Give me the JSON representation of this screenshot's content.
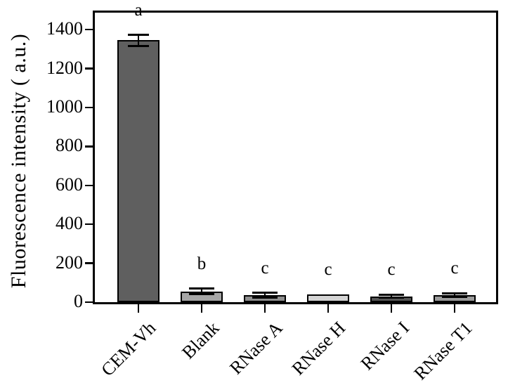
{
  "chart_data": {
    "type": "bar",
    "title": "",
    "xlabel": "",
    "ylabel": "Fluorescence intensity ( a.u.)",
    "ylim": [
      0,
      1490
    ],
    "yticks": [
      0,
      200,
      400,
      600,
      800,
      1000,
      1200,
      1400
    ],
    "categories": [
      "CEM-Vh",
      "Blank",
      "RNase A",
      "RNase H",
      "RNase I",
      "RNase T1"
    ],
    "values": [
      1345,
      55,
      35,
      38,
      30,
      36
    ],
    "errors": [
      28,
      14,
      12,
      0,
      8,
      10
    ],
    "sig_letters": [
      "a",
      "b",
      "c",
      "c",
      "c",
      "c"
    ],
    "bar_colors": [
      "#5f5f5f",
      "#a6a6a6",
      "#8f8f8f",
      "#d4d4d4",
      "#555555",
      "#9c9c9c"
    ],
    "bar_edge_color": "#000000",
    "axis_color": "#000000",
    "grid": false,
    "legend_position": "none"
  }
}
